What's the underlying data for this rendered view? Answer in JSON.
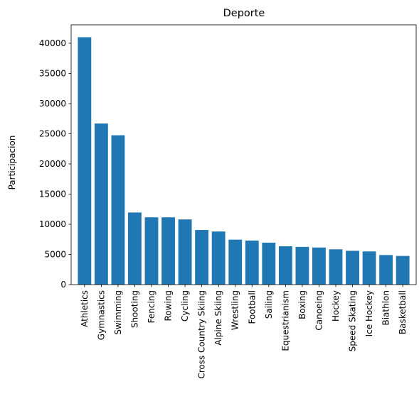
{
  "chart_data": {
    "type": "bar",
    "title": "Deporte",
    "xlabel": "",
    "ylabel": "Participacion",
    "categories": [
      "Athletics",
      "Gymnastics",
      "Swimming",
      "Shooting",
      "Fencing",
      "Rowing",
      "Cycling",
      "Cross Country Skiing",
      "Alpine Skiing",
      "Wrestling",
      "Football",
      "Sailing",
      "Equestrianism",
      "Boxing",
      "Canoeing",
      "Hockey",
      "Speed Skating",
      "Ice Hockey",
      "Biathlon",
      "Basketball"
    ],
    "values": [
      41000,
      26700,
      24750,
      11950,
      11150,
      11150,
      10800,
      9050,
      8800,
      7450,
      7300,
      6950,
      6350,
      6250,
      6150,
      5850,
      5600,
      5500,
      4900,
      4750
    ],
    "ylim": [
      0,
      43050
    ],
    "yticks": [
      0,
      5000,
      10000,
      15000,
      20000,
      25000,
      30000,
      35000,
      40000
    ],
    "grid": false,
    "colors": {
      "bar": "#1f77b4",
      "axis": "#000000"
    }
  }
}
